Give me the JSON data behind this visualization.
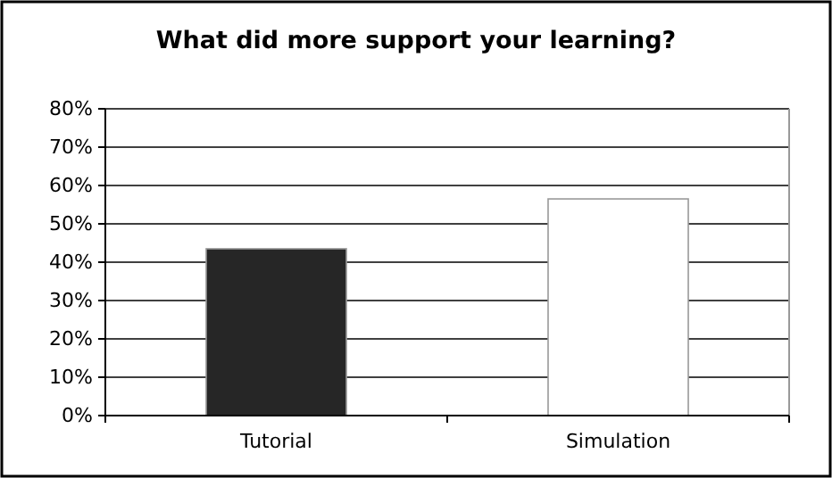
{
  "chart_data": {
    "type": "bar",
    "title": "What did more support your learning?",
    "categories": [
      "Tutorial",
      "Simulation"
    ],
    "values": [
      43.5,
      56.5
    ],
    "colors": [
      "#262626",
      "#ffffff"
    ],
    "ylim": [
      0,
      80
    ],
    "yticks": [
      {
        "value": 0,
        "label": "0%"
      },
      {
        "value": 10,
        "label": "10%"
      },
      {
        "value": 20,
        "label": "20%"
      },
      {
        "value": 30,
        "label": "30%"
      },
      {
        "value": 40,
        "label": "40%"
      },
      {
        "value": 50,
        "label": "50%"
      },
      {
        "value": 60,
        "label": "60%"
      },
      {
        "value": 70,
        "label": "70%"
      },
      {
        "value": 80,
        "label": "80%"
      }
    ],
    "grid": "y"
  }
}
